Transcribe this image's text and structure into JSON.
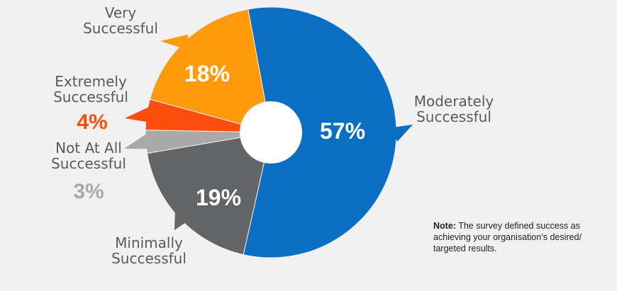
{
  "chart_data": {
    "type": "pie",
    "style": "donut",
    "slices": [
      {
        "label_lines": [
          "Moderately",
          "Successful"
        ],
        "value": 57,
        "value_label": "57%",
        "color": "#0a6fc2"
      },
      {
        "label_lines": [
          "Minimally",
          "Successful"
        ],
        "value": 19,
        "value_label": "19%",
        "color": "#636466"
      },
      {
        "label_lines": [
          "Not At All",
          "Successful"
        ],
        "value": 3,
        "value_label": "3%",
        "color": "#a9a9aa"
      },
      {
        "label_lines": [
          "Extremely",
          "Successful"
        ],
        "value": 4,
        "value_label": "4%",
        "color": "#fb4d0b"
      },
      {
        "label_lines": [
          "Very",
          "Successful"
        ],
        "value": 18,
        "value_label": "18%",
        "color": "#ff9a0a"
      }
    ],
    "value_label_placement": [
      "inside",
      "inside",
      "outside",
      "outside",
      "inside"
    ],
    "value_label_colors": [
      "#ffffff",
      "#ffffff",
      "#a9a9aa",
      "#fb4d0b",
      "#ffffff"
    ]
  },
  "note": {
    "bold": "Note:",
    "text": "The survey defined success as achieving your organisation’s desired/ targeted results."
  }
}
